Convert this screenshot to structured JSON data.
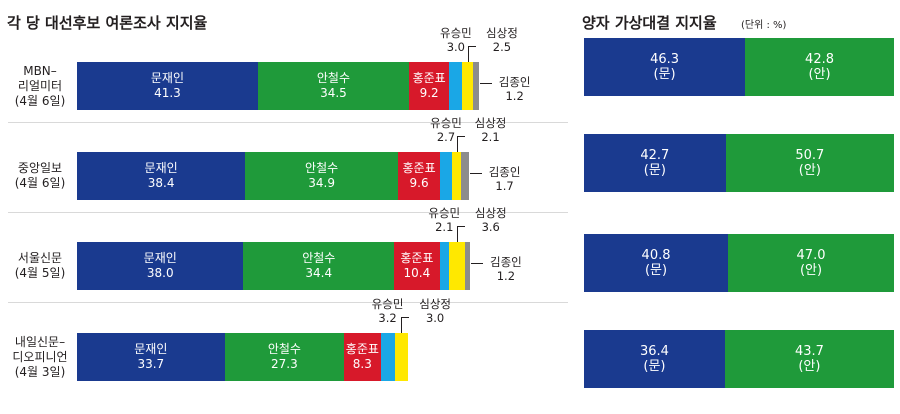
{
  "left_title": "각 당 대선후보 여론조사 지지율",
  "right_title": "양자 가상대결 지지율",
  "right_unit": "(단위 : %)",
  "colors": {
    "moon": "#1a3a8f",
    "ahn": "#1f9a3a",
    "hong": "#d7192a",
    "yoo": "#1aa7e6",
    "sim": "#ffe800",
    "kim": "#8c8c8c"
  },
  "chart_data": [
    {
      "type": "bar",
      "stacked": true,
      "orientation": "horizontal",
      "title": "각 당 대선후보 여론조사 지지율",
      "candidates": [
        "문재인",
        "안철수",
        "홍준표",
        "유승민",
        "심상정",
        "김종인"
      ],
      "polls": [
        {
          "label_lines": [
            "MBN–",
            "리얼미터",
            "(4월 6일)"
          ],
          "values": {
            "문재인": "41.3",
            "안철수": "34.5",
            "홍준표": "9.2",
            "유승민": "3.0",
            "심상정": "2.5",
            "김종인": "1.2"
          }
        },
        {
          "label_lines": [
            "중앙일보",
            "(4월 6일)"
          ],
          "values": {
            "문재인": "38.4",
            "안철수": "34.9",
            "홍준표": "9.6",
            "유승민": "2.7",
            "심상정": "2.1",
            "김종인": "1.7"
          }
        },
        {
          "label_lines": [
            "서울신문",
            "(4월 5일)"
          ],
          "values": {
            "문재인": "38.0",
            "안철수": "34.4",
            "홍준표": "10.4",
            "유승민": "2.1",
            "심상정": "3.6",
            "김종인": "1.2"
          }
        },
        {
          "label_lines": [
            "내일신문–",
            "디오피니언",
            "(4월 3일)"
          ],
          "values": {
            "문재인": "33.7",
            "안철수": "27.3",
            "홍준표": "8.3",
            "유승민": "3.2",
            "심상정": "3.0"
          }
        }
      ]
    },
    {
      "type": "bar",
      "stacked": true,
      "orientation": "horizontal",
      "title": "양자 가상대결 지지율",
      "unit": "(단위 : %)",
      "matchups": [
        {
          "moon": "46.3",
          "ahn": "42.8",
          "moon_tag": "(문)",
          "ahn_tag": "(안)"
        },
        {
          "moon": "42.7",
          "ahn": "50.7",
          "moon_tag": "(문)",
          "ahn_tag": "(안)"
        },
        {
          "moon": "40.8",
          "ahn": "47.0",
          "moon_tag": "(문)",
          "ahn_tag": "(안)"
        },
        {
          "moon": "36.4",
          "ahn": "43.7",
          "moon_tag": "(문)",
          "ahn_tag": "(안)"
        }
      ]
    }
  ]
}
